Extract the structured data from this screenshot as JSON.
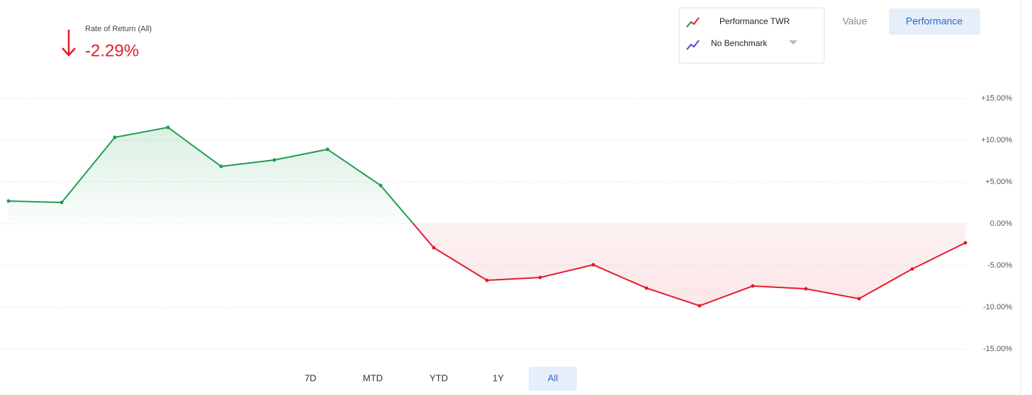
{
  "header": {
    "label": "Rate of Return (All)",
    "value": "-2.29%"
  },
  "legend": {
    "benchmark": "No Benchmark"
  },
  "view_buttons": [
    "Value",
    "Performance"
  ],
  "range_buttons": [
    "7D",
    "MTD",
    "YTD",
    "1Y",
    "All"
  ],
  "chart_data": {
    "type": "line",
    "series": [
      {
        "name": "Performance TWR",
        "color": "#1e9e4f",
        "negative_color": "#e31b2c",
        "values": [
          2.71,
          2.54,
          10.34,
          11.53,
          6.86,
          7.63,
          8.9,
          4.58,
          -2.88,
          -6.78,
          -6.44,
          -4.92,
          -7.71,
          -9.83,
          -7.46,
          -7.8,
          -8.98,
          -5.42,
          -2.29
        ]
      }
    ],
    "ylim": [
      -16.5,
      16.5
    ],
    "yticks": [
      {
        "value": 15,
        "label": "+15.00%"
      },
      {
        "value": 10,
        "label": "+10.00%"
      },
      {
        "value": 5,
        "label": "+5.00%"
      },
      {
        "value": 0,
        "label": "0.00%"
      },
      {
        "value": -5,
        "label": "-5.00%"
      },
      {
        "value": -10,
        "label": "-10.00%"
      },
      {
        "value": -15,
        "label": "-15.00%"
      }
    ],
    "grid": true
  }
}
